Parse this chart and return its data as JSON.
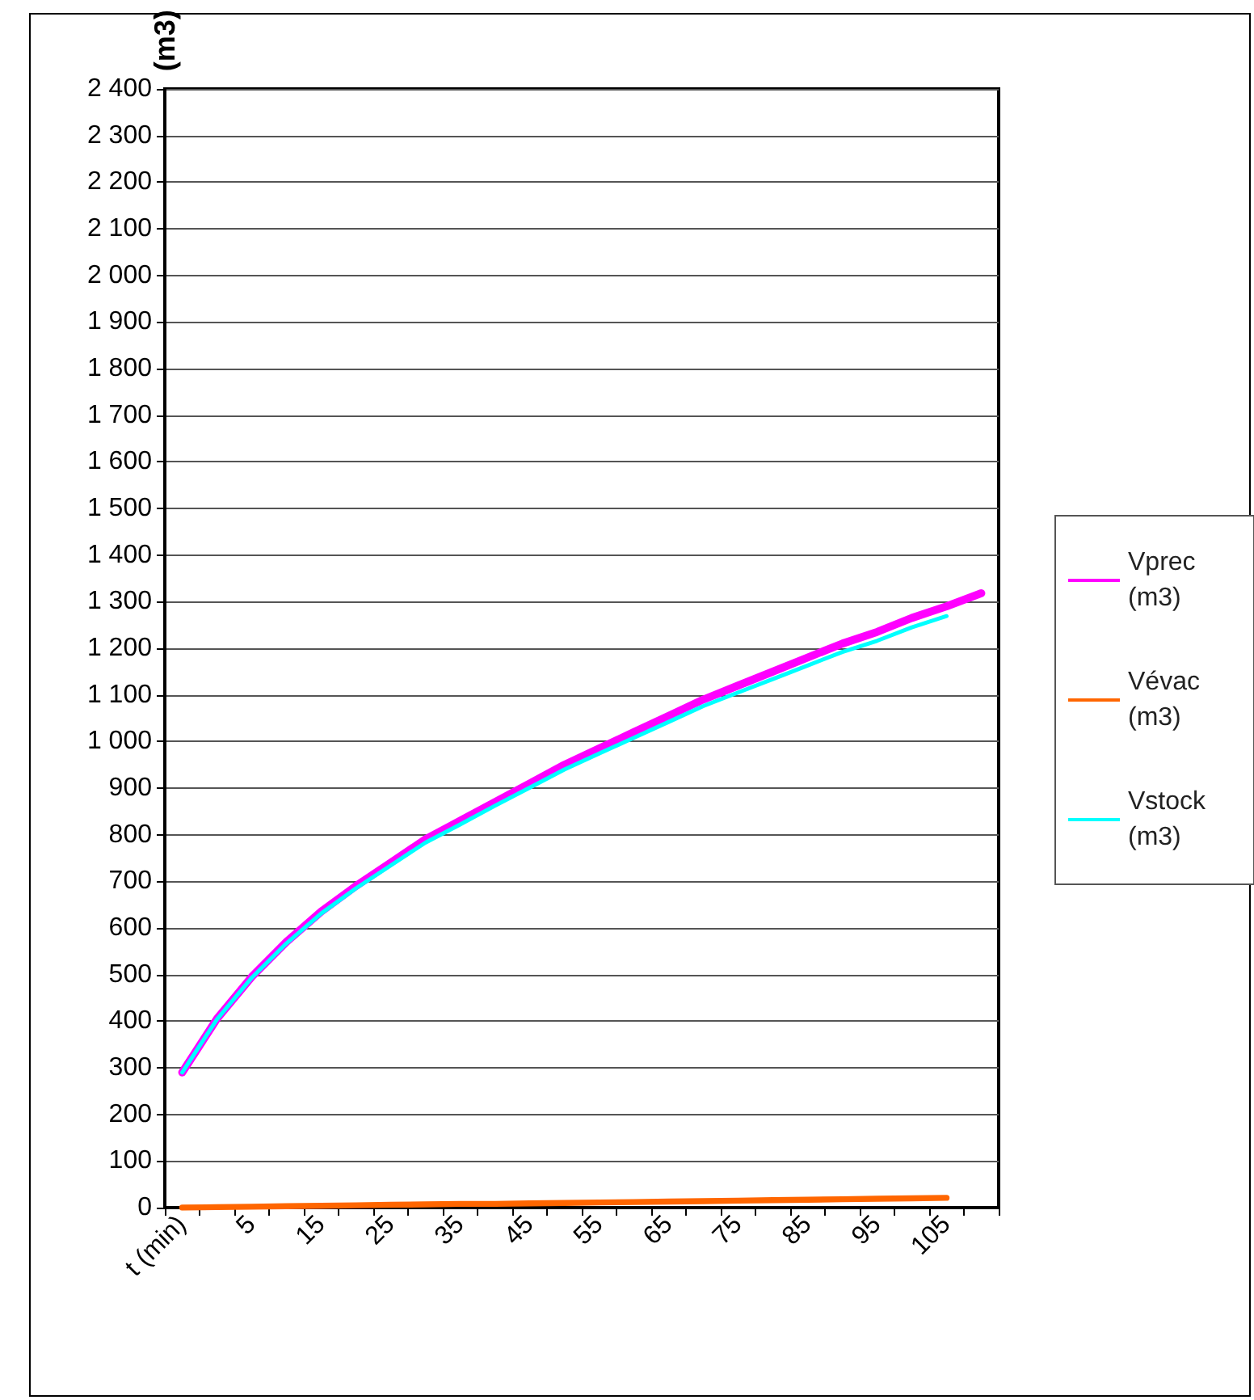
{
  "chart_data": {
    "type": "line",
    "ylabel": "(m3)",
    "categories": [
      "t (min)",
      null,
      "5",
      null,
      "15",
      null,
      "25",
      null,
      "35",
      null,
      "45",
      null,
      "55",
      null,
      "65",
      null,
      "75",
      null,
      "85",
      null,
      "95",
      null,
      "105",
      null
    ],
    "series": [
      {
        "name": "Vprec (m3)",
        "color": "#ff00ff",
        "values": [
          290,
          405,
          495,
          570,
          635,
          690,
          740,
          790,
          830,
          870,
          910,
          950,
          985,
          1020,
          1055,
          1090,
          1120,
          1150,
          1180,
          1210,
          1235,
          1265,
          1290,
          1318
        ]
      },
      {
        "name": "Vévac (m3)",
        "color": "#ff6600",
        "values": [
          0,
          1,
          2,
          3,
          4,
          5,
          6,
          7,
          8,
          8,
          9,
          10,
          11,
          12,
          13,
          14,
          15,
          16,
          17,
          18,
          19,
          20,
          21,
          null
        ]
      },
      {
        "name": "Vstock (m3)",
        "color": "#00ffff",
        "values": [
          290,
          404,
          493,
          567,
          631,
          685,
          734,
          783,
          822,
          862,
          901,
          940,
          974,
          1008,
          1042,
          1076,
          1105,
          1134,
          1163,
          1192,
          1216,
          1245,
          1269,
          null
        ]
      }
    ],
    "ylim": [
      0,
      2400
    ],
    "yticks": [
      0,
      100,
      200,
      300,
      400,
      500,
      600,
      700,
      800,
      900,
      {
        "value": 1000,
        "label": "1 000"
      },
      {
        "value": 1100,
        "label": "1 100"
      },
      {
        "value": 1200,
        "label": "1 200"
      },
      {
        "value": 1300,
        "label": "1 300"
      },
      {
        "value": 1400,
        "label": "1 400"
      },
      {
        "value": 1500,
        "label": "1 500"
      },
      {
        "value": 1600,
        "label": "1 600"
      },
      {
        "value": 1700,
        "label": "1 700"
      },
      {
        "value": 1800,
        "label": "1 800"
      },
      {
        "value": 1900,
        "label": "1 900"
      },
      {
        "value": 2000,
        "label": "2 000"
      },
      {
        "value": 2100,
        "label": "2 100"
      },
      {
        "value": 2200,
        "label": "2 200"
      },
      {
        "value": 2300,
        "label": "2 300"
      },
      {
        "value": 2400,
        "label": "2 400"
      }
    ],
    "grid": "y",
    "legend": "right",
    "marker": "none",
    "line_style": "solid"
  }
}
